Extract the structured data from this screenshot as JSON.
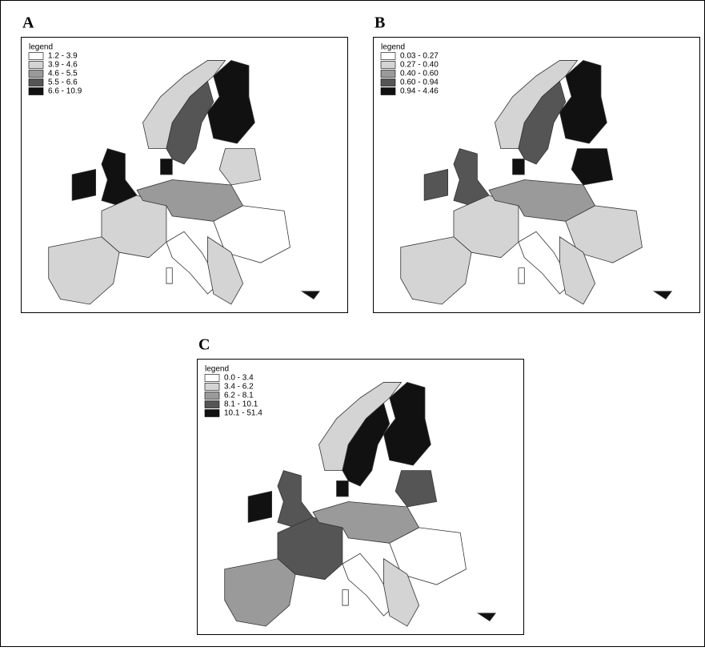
{
  "panels": [
    {
      "label": "A",
      "legend_title": "legend",
      "legend": [
        {
          "range": "1.2 -  3.9",
          "color": "#ffffff"
        },
        {
          "range": "3.9 -  4.6",
          "color": "#d4d4d4"
        },
        {
          "range": "4.6 -  5.5",
          "color": "#9a9a9a"
        },
        {
          "range": "5.5 -  6.6",
          "color": "#555555"
        },
        {
          "range": "6.6 - 10.9",
          "color": "#111111"
        }
      ]
    },
    {
      "label": "B",
      "legend_title": "legend",
      "legend": [
        {
          "range": "0.03 - 0.27",
          "color": "#ffffff"
        },
        {
          "range": "0.27 - 0.40",
          "color": "#d4d4d4"
        },
        {
          "range": "0.40 - 0.60",
          "color": "#9a9a9a"
        },
        {
          "range": "0.60 - 0.94",
          "color": "#555555"
        },
        {
          "range": "0.94 - 4.46",
          "color": "#111111"
        }
      ]
    },
    {
      "label": "C",
      "legend_title": "legend",
      "legend": [
        {
          "range": "0.0 -  3.4",
          "color": "#ffffff"
        },
        {
          "range": "3.4 -  6.2",
          "color": "#d4d4d4"
        },
        {
          "range": "6.2 -  8.1",
          "color": "#9a9a9a"
        },
        {
          "range": "8.1 - 10.1",
          "color": "#555555"
        },
        {
          "range": "10.1 - 51.4",
          "color": "#111111"
        }
      ]
    }
  ]
}
